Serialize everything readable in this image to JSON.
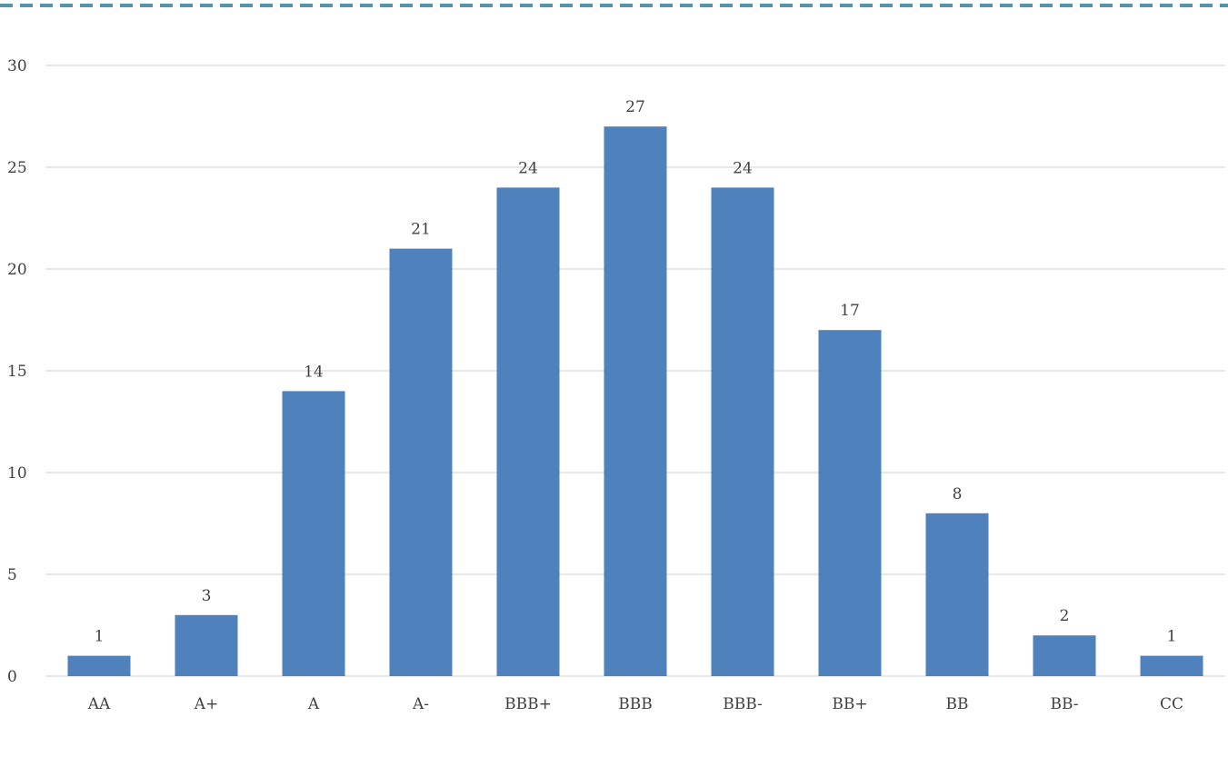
{
  "chart_data": {
    "type": "bar",
    "categories": [
      "AA",
      "A+",
      "A",
      "A-",
      "BBB+",
      "BBB",
      "BBB-",
      "BB+",
      "BB",
      "BB-",
      "CC"
    ],
    "values": [
      1,
      3,
      14,
      21,
      24,
      27,
      24,
      17,
      8,
      2,
      1
    ],
    "title": "",
    "xlabel": "",
    "ylabel": "",
    "ylim": [
      0,
      30
    ],
    "yticks": [
      0,
      5,
      10,
      15,
      20,
      25,
      30
    ],
    "grid": true,
    "legend": "none",
    "data_labels": true,
    "colors": {
      "bar": "#4F81BD",
      "gridline": "#D9D9D9",
      "axis": "#D9D9D9",
      "border_dash": "#4F96AD",
      "text": "#404040"
    }
  }
}
